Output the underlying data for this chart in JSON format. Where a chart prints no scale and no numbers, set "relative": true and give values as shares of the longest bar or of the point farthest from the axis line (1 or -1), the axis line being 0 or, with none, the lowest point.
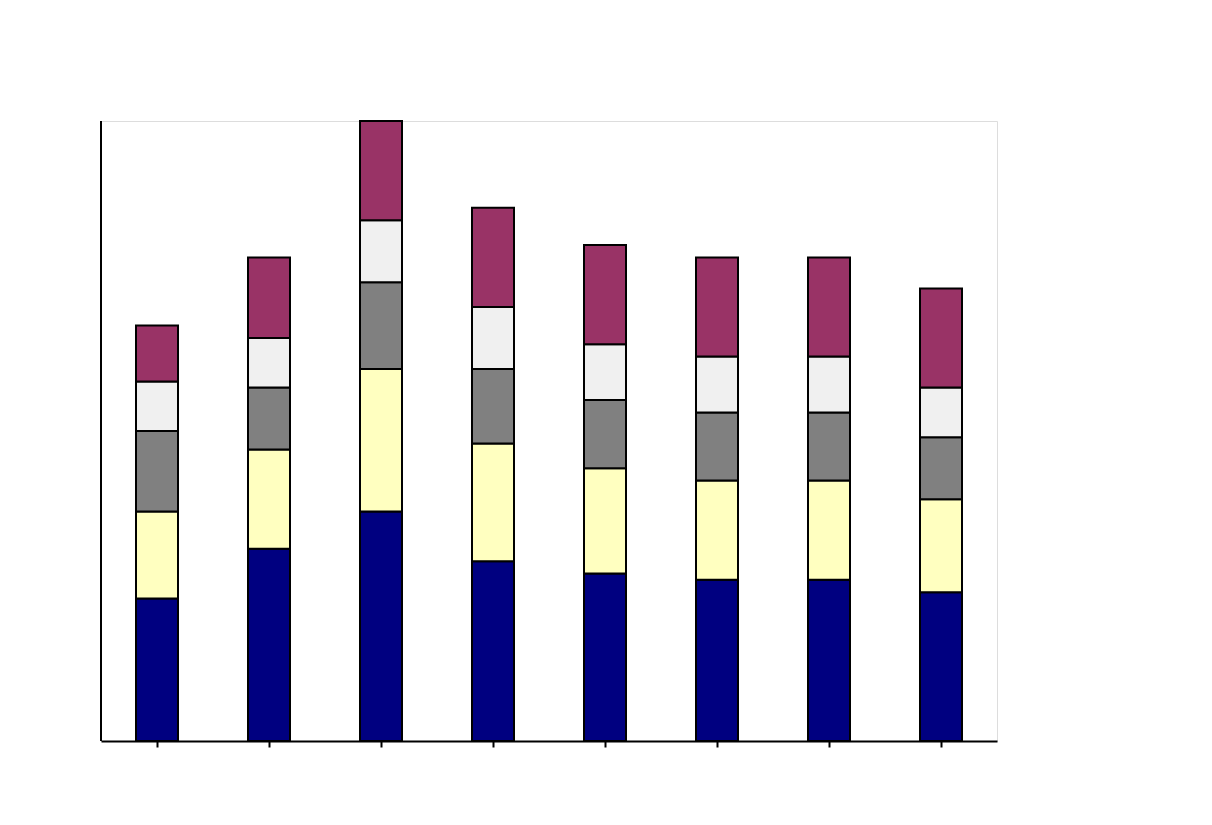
{
  "chart_data": {
    "type": "bar",
    "stacked": true,
    "relative": true,
    "categories": [
      null,
      null,
      null,
      null,
      null,
      null,
      null,
      null
    ],
    "series": [
      {
        "color": "#000080",
        "values": [
          0.23,
          0.31,
          0.37,
          0.29,
          0.27,
          0.26,
          0.26,
          0.24
        ]
      },
      {
        "color": "#ffffc0",
        "values": [
          0.14,
          0.16,
          0.23,
          0.19,
          0.17,
          0.16,
          0.16,
          0.15
        ]
      },
      {
        "color": "#808080",
        "values": [
          0.13,
          0.1,
          0.14,
          0.12,
          0.11,
          0.11,
          0.11,
          0.1
        ]
      },
      {
        "color": "#f0f0f0",
        "values": [
          0.08,
          0.08,
          0.1,
          0.1,
          0.09,
          0.09,
          0.09,
          0.08
        ]
      },
      {
        "color": "#993366",
        "values": [
          0.09,
          0.13,
          0.16,
          0.16,
          0.16,
          0.16,
          0.16,
          0.16
        ]
      }
    ]
  }
}
